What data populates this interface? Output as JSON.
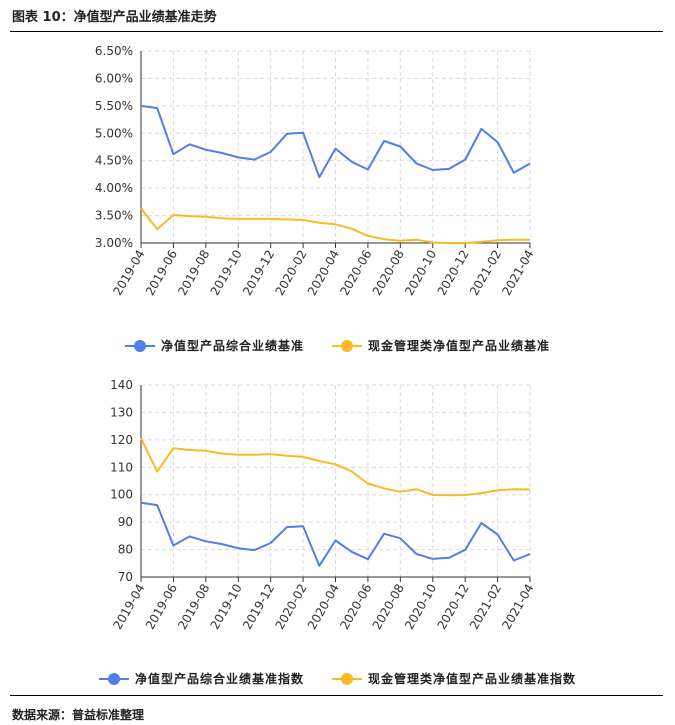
{
  "header": {
    "title": "图表 10：净值型产品业绩基准走势"
  },
  "footer": {
    "source": "数据来源：普益标准整理"
  },
  "colors": {
    "blue": "#4F7FE8",
    "orange": "#F8BA27",
    "grid": "#d9d9d9",
    "axis": "#333333"
  },
  "chart_data": [
    {
      "type": "line",
      "categories": [
        "2019-04",
        "2019-05",
        "2019-06",
        "2019-07",
        "2019-08",
        "2019-09",
        "2019-10",
        "2019-11",
        "2019-12",
        "2020-01",
        "2020-02",
        "2020-03",
        "2020-04",
        "2020-05",
        "2020-06",
        "2020-07",
        "2020-08",
        "2020-09",
        "2020-10",
        "2020-11",
        "2020-12",
        "2021-01",
        "2021-02",
        "2021-03",
        "2021-04"
      ],
      "tick_labels": [
        "2019-04",
        "2019-06",
        "2019-08",
        "2019-10",
        "2019-12",
        "2020-02",
        "2020-04",
        "2020-06",
        "2020-08",
        "2020-10",
        "2020-12",
        "2021-02",
        "2021-04"
      ],
      "y_ticks": [
        "3.00%",
        "3.50%",
        "4.00%",
        "4.50%",
        "5.00%",
        "5.50%",
        "6.00%",
        "6.50%"
      ],
      "ylim": [
        3.0,
        6.5
      ],
      "series": [
        {
          "name": "净值型产品综合业绩基准",
          "color": "#4F7FE8",
          "values": [
            5.5,
            5.46,
            4.62,
            4.8,
            4.7,
            4.64,
            4.56,
            4.52,
            4.66,
            4.99,
            5.01,
            4.2,
            4.72,
            4.48,
            4.34,
            4.86,
            4.76,
            4.45,
            4.33,
            4.35,
            4.52,
            5.08,
            4.84,
            4.28,
            4.45
          ]
        },
        {
          "name": "现金管理类净值型产品业绩基准",
          "color": "#F8BA27",
          "values": [
            3.63,
            3.25,
            3.51,
            3.49,
            3.48,
            3.45,
            3.44,
            3.44,
            3.44,
            3.43,
            3.42,
            3.37,
            3.34,
            3.26,
            3.13,
            3.07,
            3.04,
            3.06,
            3.01,
            3.0,
            3.0,
            3.02,
            3.05,
            3.06,
            3.06
          ]
        }
      ]
    },
    {
      "type": "line",
      "categories": [
        "2019-04",
        "2019-05",
        "2019-06",
        "2019-07",
        "2019-08",
        "2019-09",
        "2019-10",
        "2019-11",
        "2019-12",
        "2020-01",
        "2020-02",
        "2020-03",
        "2020-04",
        "2020-05",
        "2020-06",
        "2020-07",
        "2020-08",
        "2020-09",
        "2020-10",
        "2020-11",
        "2020-12",
        "2021-01",
        "2021-02",
        "2021-03",
        "2021-04"
      ],
      "tick_labels": [
        "2019-04",
        "2019-06",
        "2019-08",
        "2019-10",
        "2019-12",
        "2020-02",
        "2020-04",
        "2020-06",
        "2020-08",
        "2020-10",
        "2020-12",
        "2021-02",
        "2021-04"
      ],
      "y_ticks": [
        "70",
        "80",
        "90",
        "100",
        "110",
        "120",
        "130",
        "140"
      ],
      "ylim": [
        70,
        140
      ],
      "series": [
        {
          "name": "净值型产品综合业绩基准指数",
          "color": "#4F7FE8",
          "values": [
            97.1,
            96.2,
            81.5,
            84.8,
            83.0,
            82.0,
            80.5,
            79.8,
            82.4,
            88.2,
            88.5,
            74.1,
            83.3,
            79.2,
            76.5,
            85.8,
            84.1,
            78.4,
            76.6,
            77.0,
            79.9,
            89.7,
            85.5,
            76.0,
            78.4
          ]
        },
        {
          "name": "现金管理类净值型产品业绩基准指数",
          "color": "#F8BA27",
          "values": [
            120.6,
            108.4,
            117.0,
            116.3,
            116.0,
            115.0,
            114.6,
            114.6,
            114.8,
            114.2,
            113.8,
            112.3,
            111.1,
            108.5,
            104.1,
            102.3,
            101.1,
            102.0,
            99.9,
            99.8,
            99.9,
            100.6,
            101.6,
            102.0,
            101.9
          ]
        }
      ]
    }
  ]
}
